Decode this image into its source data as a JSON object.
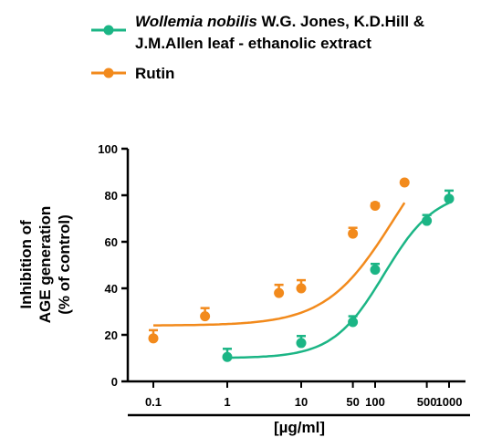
{
  "chart_data": {
    "type": "scatter",
    "xscale": "log",
    "xlim": [
      0.05,
      1400
    ],
    "ylim": [
      0,
      100
    ],
    "x_ticks": [
      0.1,
      1,
      10,
      50,
      100,
      500,
      1000
    ],
    "x_tick_labels": [
      "0.1",
      "1",
      "10",
      "50",
      "100",
      "500",
      "1000"
    ],
    "y_ticks": [
      0,
      20,
      40,
      60,
      80,
      100
    ],
    "y_tick_labels": [
      "0",
      "20",
      "40",
      "60",
      "80",
      "100"
    ],
    "xlabel": "[µg/ml]",
    "ylabel_lines": [
      "Inhibition of",
      "AGE generation",
      "(% of control)"
    ],
    "grid": false,
    "legend_position": "top",
    "series": [
      {
        "name_italic": "Wollemia nobilis",
        "name_rest_line1": " W.G. Jones, K.D.Hill &",
        "name_line2": "J.M.Allen leaf - ethanolic extract",
        "color": "#1bb585",
        "x": [
          1,
          10,
          50,
          100,
          500,
          1000
        ],
        "y": [
          10.5,
          16.5,
          25.5,
          48.0,
          69.0,
          78.5
        ],
        "err": [
          3.5,
          3.0,
          2.5,
          2.5,
          2.5,
          3.5
        ],
        "fit": {
          "bottom": 10,
          "top": 82,
          "logEC50": 2.12,
          "hill": 1.25
        }
      },
      {
        "name": "Rutin",
        "color": "#f28a1c",
        "x": [
          0.1,
          0.5,
          5,
          10,
          50,
          100,
          250
        ],
        "y": [
          18.5,
          28.0,
          38.0,
          40.0,
          63.5,
          75.5,
          85.5
        ],
        "err": [
          3.5,
          3.5,
          3.5,
          3.5,
          2.5,
          1.0,
          0.5
        ],
        "fit": {
          "bottom": 24,
          "top": 115,
          "logEC50": 2.25,
          "hill": 0.95
        }
      }
    ]
  }
}
